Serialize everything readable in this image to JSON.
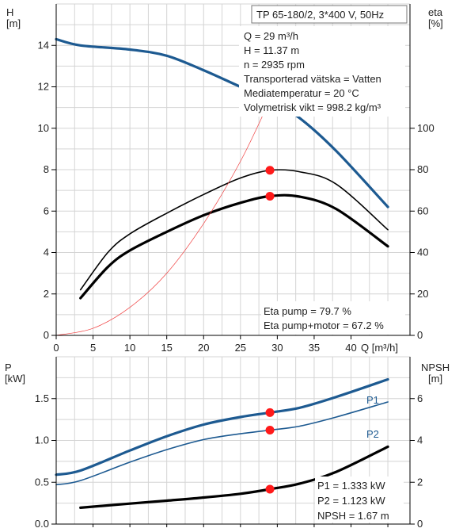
{
  "top_chart": {
    "y_left_label": "H",
    "y_left_unit": "[m]",
    "y_right_label": "eta",
    "y_right_unit": "[%]",
    "x_axis_label": "Q [m³/h]",
    "header": "TP 65-180/2, 3*400 V, 50Hz",
    "info": [
      "Q = 29 m³/h",
      "H = 11.37 m",
      "n = 2935 rpm",
      "Transporterad vätska = Vatten",
      "Mediatemperatur = 20 °C",
      "Volymetrisk vikt = 998.2 kg/m³"
    ],
    "eta_texts": [
      "Eta pump = 79.7 %",
      "Eta pump+motor = 67.2 %"
    ]
  },
  "bottom_chart": {
    "y_left_label": "P",
    "y_left_unit": "[kW]",
    "y_right_label": "NPSH",
    "y_right_unit": "[m]",
    "curve_labels": [
      "P1",
      "P2"
    ],
    "values_texts": [
      "P1 = 1.333 kW",
      "P2 = 1.123 kW",
      "NPSH = 1.67 m"
    ]
  },
  "chart_data": [
    {
      "type": "line",
      "x_label": "Q [m³/h]",
      "y_label": "H [m]",
      "y2_label": "eta [%]",
      "xlim": [
        0,
        48
      ],
      "ylim": [
        0,
        16
      ],
      "y2lim": [
        0,
        160
      ],
      "x_ticks": [
        0,
        5,
        10,
        15,
        20,
        25,
        30,
        35,
        40
      ],
      "y_ticks": [
        0,
        2,
        4,
        6,
        8,
        10,
        12,
        14
      ],
      "y2_ticks": [
        0,
        20,
        40,
        60,
        80,
        100
      ],
      "grid": true,
      "series": [
        {
          "axis": "left",
          "color": "#1d5a91",
          "x": [
            0,
            3.3,
            10,
            15,
            20,
            25,
            29,
            33,
            38,
            45
          ],
          "y": [
            14.3,
            14.0,
            13.8,
            13.5,
            12.8,
            12.0,
            11.37,
            10.5,
            8.9,
            6.2
          ]
        },
        {
          "axis": "right",
          "color": "#000000",
          "x": [
            3.3,
            7,
            10,
            15,
            20,
            25,
            29,
            33,
            38,
            45
          ],
          "y": [
            22,
            40,
            49,
            59,
            68,
            76,
            79.7,
            79,
            73,
            51
          ]
        },
        {
          "axis": "right",
          "color": "#000000",
          "x": [
            3.3,
            7,
            10,
            15,
            20,
            25,
            29,
            33,
            38,
            45
          ],
          "y": [
            18,
            33,
            41,
            50,
            58,
            64,
            67.2,
            67,
            61,
            43
          ]
        },
        {
          "axis": "left",
          "color": "#f04040",
          "x": [
            0,
            5,
            10,
            15,
            20,
            25,
            29
          ],
          "y": [
            0,
            0.34,
            1.35,
            3.0,
            5.4,
            8.4,
            11.37
          ]
        }
      ],
      "markers": [
        {
          "axis": "left",
          "x": 29,
          "y": 11.37
        },
        {
          "axis": "right",
          "x": 29,
          "y": 79.7
        },
        {
          "axis": "right",
          "x": 29,
          "y": 67.2
        }
      ]
    },
    {
      "type": "line",
      "y_label": "P [kW]",
      "y2_label": "NPSH [m]",
      "xlim": [
        0,
        48
      ],
      "ylim": [
        0,
        2
      ],
      "y2lim": [
        0,
        8
      ],
      "y_ticks": [
        0,
        0.5,
        1.0,
        1.5
      ],
      "y_tick_labels": [
        "0.0",
        "0.5",
        "1.0",
        "1.5"
      ],
      "y2_ticks": [
        0,
        2,
        4,
        6
      ],
      "grid": true,
      "series": [
        {
          "name": "P1",
          "axis": "left",
          "color": "#1d5a91",
          "x": [
            0,
            3.3,
            10,
            15,
            20,
            25,
            29,
            33,
            38,
            45
          ],
          "y": [
            0.59,
            0.64,
            0.88,
            1.05,
            1.19,
            1.28,
            1.333,
            1.39,
            1.52,
            1.73
          ]
        },
        {
          "name": "P2",
          "axis": "left",
          "color": "#1d5a91",
          "x": [
            0,
            3.3,
            10,
            15,
            20,
            25,
            29,
            33,
            38,
            45
          ],
          "y": [
            0.47,
            0.52,
            0.74,
            0.89,
            1.01,
            1.08,
            1.123,
            1.17,
            1.28,
            1.46
          ]
        },
        {
          "axis": "right",
          "color": "#000000",
          "x": [
            3.3,
            10,
            15,
            20,
            25,
            29,
            33,
            38,
            45
          ],
          "y": [
            0.78,
            0.98,
            1.12,
            1.27,
            1.45,
            1.67,
            1.93,
            2.5,
            3.7
          ]
        }
      ],
      "markers": [
        {
          "axis": "left",
          "x": 29,
          "y": 1.333
        },
        {
          "axis": "left",
          "x": 29,
          "y": 1.123
        },
        {
          "axis": "right",
          "x": 29,
          "y": 1.67
        }
      ]
    }
  ]
}
